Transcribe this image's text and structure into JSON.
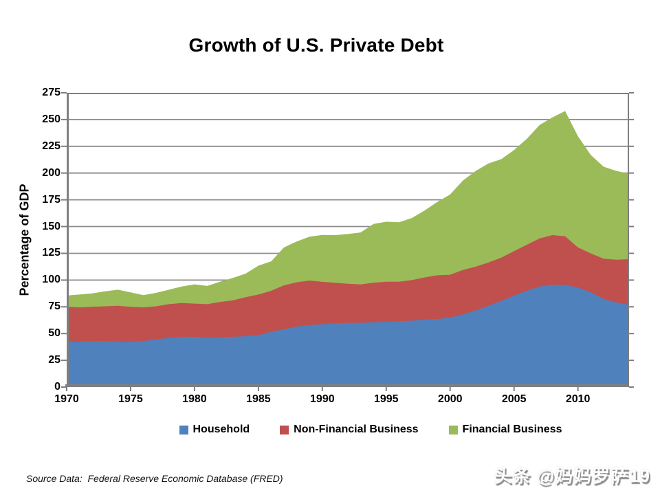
{
  "page": {
    "title": "Growth of U.S. Private Debt",
    "source_note": "Source Data:  Federal Reserve Economic Database (FRED)",
    "watermark": "头条 @妈妈罗萨19"
  },
  "colors": {
    "household": "#4F81BD",
    "non_financial_business": "#C0504D",
    "financial_business": "#9BBB59",
    "gridline": "#8C8C8C",
    "axis": "#7F7F7F",
    "text": "#000000",
    "background": "#FFFFFF"
  },
  "chart_data": {
    "type": "area",
    "stacked": true,
    "title": "Growth of U.S. Private Debt",
    "xlabel": "",
    "ylabel": "Percentage of GDP",
    "ylim": [
      0,
      275
    ],
    "y_tick_step": 25,
    "y_ticks": [
      0,
      25,
      50,
      75,
      100,
      125,
      150,
      175,
      200,
      225,
      250,
      275
    ],
    "x_range": [
      1970,
      2014
    ],
    "x_ticks": [
      1970,
      1975,
      1980,
      1985,
      1990,
      1995,
      2000,
      2005,
      2010
    ],
    "grid": "horizontal",
    "legend_position": "bottom",
    "years": [
      1970,
      1971,
      1972,
      1973,
      1974,
      1975,
      1976,
      1977,
      1978,
      1979,
      1980,
      1981,
      1982,
      1983,
      1984,
      1985,
      1986,
      1987,
      1988,
      1989,
      1990,
      1991,
      1992,
      1993,
      1994,
      1995,
      1996,
      1997,
      1998,
      1999,
      2000,
      2001,
      2002,
      2003,
      2004,
      2005,
      2006,
      2007,
      2008,
      2009,
      2010,
      2011,
      2012,
      2013,
      2014
    ],
    "series": [
      {
        "name": "Household",
        "color": "#4F81BD",
        "values": [
          42.5,
          42.5,
          43,
          43,
          42.5,
          42.5,
          43,
          44.5,
          46,
          47,
          47,
          46,
          46.5,
          47,
          47.5,
          48.5,
          51.5,
          54,
          56.5,
          58,
          58.7,
          59.5,
          60,
          60,
          60.5,
          61,
          61.5,
          62,
          63,
          63.5,
          65,
          68,
          71.5,
          76,
          80.5,
          85.5,
          90,
          94,
          95.5,
          95.5,
          93,
          88.5,
          82.5,
          79,
          77
        ]
      },
      {
        "name": "Non-Financial Business",
        "color": "#C0504D",
        "values": [
          32.5,
          32,
          32,
          32.5,
          33.5,
          32.5,
          31.5,
          31,
          31.5,
          31.5,
          31,
          31.5,
          33,
          34,
          36.5,
          38,
          38.5,
          41,
          41.5,
          41.5,
          39.7,
          38,
          36.5,
          36,
          37,
          37.5,
          37,
          38,
          39.5,
          41,
          40,
          41.5,
          41,
          40.5,
          40.5,
          41.5,
          43,
          45,
          46.5,
          45.5,
          37.5,
          36.5,
          37.5,
          40,
          42.5
        ]
      },
      {
        "name": "Financial Business",
        "color": "#9BBB59",
        "values": [
          10.5,
          12,
          12.5,
          14,
          15,
          13.5,
          11.5,
          12.5,
          13.5,
          15.5,
          18,
          17,
          19,
          21,
          22,
          27,
          27.5,
          35.5,
          38,
          41,
          43.8,
          44.5,
          46.5,
          48.5,
          55,
          56,
          55.5,
          58,
          62.5,
          68.5,
          75,
          83.5,
          89.5,
          92.5,
          92,
          94.5,
          99,
          106,
          110,
          117,
          104,
          92,
          86,
          83,
          80
        ]
      }
    ]
  }
}
